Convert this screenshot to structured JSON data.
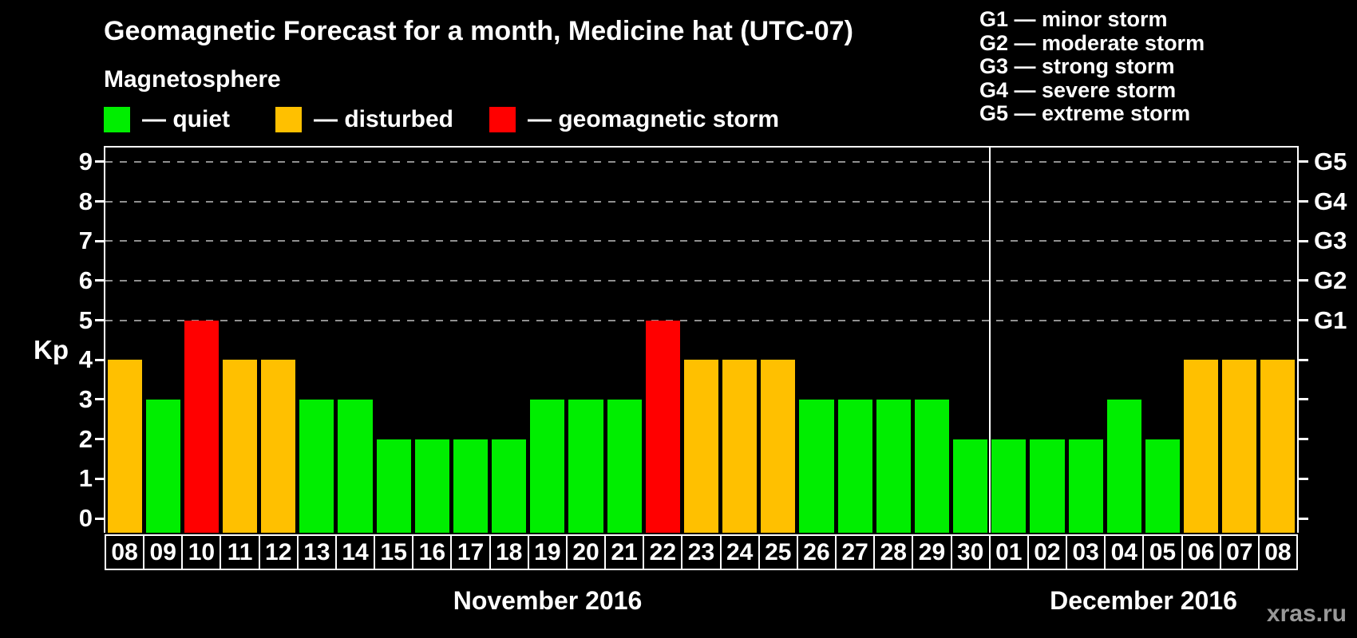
{
  "header": {
    "title": "Geomagnetic Forecast for a month, Medicine hat (UTC-07)"
  },
  "legend": {
    "title": "Magnetosphere",
    "items": [
      {
        "key": "quiet",
        "label": "— quiet"
      },
      {
        "key": "disturbed",
        "label": "— disturbed"
      },
      {
        "key": "storm",
        "label": "— geomagnetic storm"
      }
    ]
  },
  "g_legend": {
    "items": [
      "G1 — minor storm",
      "G2 — moderate storm",
      "G3 — strong storm",
      "G4 — severe storm",
      "G5 — extreme storm"
    ]
  },
  "chart_data": {
    "type": "bar",
    "title": "Geomagnetic Forecast for a month, Medicine hat (UTC-07)",
    "ylabel": "Kp",
    "ylim": [
      0,
      9
    ],
    "yticks": [
      0,
      1,
      2,
      3,
      4,
      5,
      6,
      7,
      8,
      9
    ],
    "gridlines_at_kp": [
      5,
      6,
      7,
      8,
      9
    ],
    "grid": "dashed",
    "legend_position": "top",
    "right_axis": [
      {
        "kp": 5,
        "label": "G1"
      },
      {
        "kp": 6,
        "label": "G2"
      },
      {
        "kp": 7,
        "label": "G3"
      },
      {
        "kp": 8,
        "label": "G4"
      },
      {
        "kp": 9,
        "label": "G5"
      }
    ],
    "months": [
      {
        "label": "November 2016",
        "days": 23
      },
      {
        "label": "December 2016",
        "days": 8
      }
    ],
    "categories": [
      "08",
      "09",
      "10",
      "11",
      "12",
      "13",
      "14",
      "15",
      "16",
      "17",
      "18",
      "19",
      "20",
      "21",
      "22",
      "23",
      "24",
      "25",
      "26",
      "27",
      "28",
      "29",
      "30",
      "01",
      "02",
      "03",
      "04",
      "05",
      "06",
      "07",
      "08"
    ],
    "values": [
      4,
      3,
      5,
      4,
      4,
      3,
      3,
      2,
      2,
      2,
      2,
      3,
      3,
      3,
      5,
      4,
      4,
      4,
      3,
      3,
      3,
      3,
      2,
      2,
      2,
      2,
      3,
      2,
      4,
      4,
      4
    ],
    "states": [
      "disturbed",
      "quiet",
      "storm",
      "disturbed",
      "disturbed",
      "quiet",
      "quiet",
      "quiet",
      "quiet",
      "quiet",
      "quiet",
      "quiet",
      "quiet",
      "quiet",
      "storm",
      "disturbed",
      "disturbed",
      "disturbed",
      "quiet",
      "quiet",
      "quiet",
      "quiet",
      "quiet",
      "quiet",
      "quiet",
      "quiet",
      "quiet",
      "quiet",
      "disturbed",
      "disturbed",
      "disturbed"
    ]
  },
  "colors": {
    "quiet": "#00EE00",
    "disturbed": "#FFC000",
    "storm": "#FF0000",
    "axis": "#FFFFFF",
    "grid": "#909090",
    "watermark": "#999999"
  },
  "footer": {
    "watermark": "xras.ru"
  }
}
